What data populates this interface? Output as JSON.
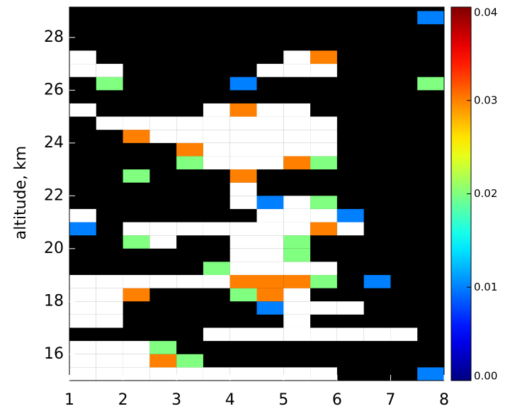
{
  "chart_data": {
    "type": "heatmap",
    "ylabel": "altitude, km",
    "xlim": [
      1,
      8
    ],
    "xticks": [
      1,
      2,
      3,
      4,
      5,
      6,
      7,
      8
    ],
    "ylim": [
      15,
      29.15
    ],
    "yticks": [
      16,
      18,
      20,
      22,
      24,
      26,
      28
    ],
    "zlim": [
      0,
      0.04
    ],
    "zticks": [
      {
        "value": 0,
        "label": "0.00"
      },
      {
        "value": 0.01,
        "label": "0.01"
      },
      {
        "value": 0.02,
        "label": "0.02"
      },
      {
        "value": 0.03,
        "label": "0.03"
      },
      {
        "value": 0.04,
        "label": "0.04"
      }
    ],
    "colormap": "jet",
    "background": "#000000",
    "over_color": "#ffffff",
    "x_edges": [
      1,
      1.5,
      2,
      2.5,
      3,
      3.5,
      4,
      4.5,
      5,
      5.5,
      6,
      6.5,
      7,
      7.5,
      8
    ],
    "y_edges": [
      15,
      15.5,
      16,
      16.5,
      17,
      17.5,
      18,
      18.5,
      19,
      19.5,
      20,
      20.5,
      21,
      21.5,
      22,
      22.5,
      23,
      23.5,
      24,
      24.5,
      25,
      25.5,
      26,
      26.5,
      27,
      27.5,
      28,
      28.5,
      29
    ],
    "z": [
      [
        0.045,
        0.045,
        0.045,
        0.045,
        0.045,
        0.045,
        0.045,
        0.045,
        0.045,
        0.045,
        null,
        null,
        null,
        0.01
      ],
      [
        0.045,
        0.045,
        0.045,
        0.03,
        0.02,
        null,
        null,
        null,
        null,
        null,
        null,
        null,
        null,
        null
      ],
      [
        0.045,
        0.045,
        0.045,
        0.02,
        null,
        null,
        null,
        null,
        null,
        null,
        null,
        null,
        null,
        null
      ],
      [
        null,
        null,
        null,
        null,
        null,
        0.045,
        0.045,
        0.045,
        0.045,
        0.045,
        0.045,
        0.045,
        0.045,
        null
      ],
      [
        0.045,
        0.045,
        null,
        null,
        null,
        null,
        null,
        null,
        0.045,
        null,
        null,
        null,
        null,
        null
      ],
      [
        0.045,
        0.045,
        null,
        null,
        null,
        null,
        null,
        0.01,
        0.045,
        0.045,
        0.045,
        null,
        null,
        null
      ],
      [
        0.045,
        0.045,
        0.03,
        null,
        null,
        null,
        0.02,
        0.03,
        0.045,
        null,
        null,
        null,
        null,
        null
      ],
      [
        0.045,
        0.045,
        0.045,
        0.045,
        0.045,
        0.045,
        0.03,
        0.03,
        0.03,
        0.02,
        null,
        0.01,
        null,
        null
      ],
      [
        null,
        null,
        null,
        null,
        null,
        0.02,
        0.045,
        0.045,
        0.045,
        0.045,
        null,
        null,
        null,
        null
      ],
      [
        null,
        null,
        null,
        null,
        null,
        null,
        0.045,
        0.045,
        0.02,
        null,
        null,
        null,
        null,
        null
      ],
      [
        null,
        null,
        0.02,
        0.045,
        null,
        null,
        0.045,
        0.045,
        0.02,
        null,
        null,
        null,
        null,
        null
      ],
      [
        0.01,
        null,
        0.045,
        0.045,
        0.045,
        0.045,
        0.045,
        0.045,
        0.045,
        0.03,
        0.045,
        null,
        null,
        null
      ],
      [
        0.045,
        null,
        null,
        null,
        null,
        null,
        null,
        0.045,
        0.045,
        0.045,
        0.01,
        null,
        null,
        null
      ],
      [
        null,
        null,
        null,
        null,
        null,
        null,
        0.045,
        0.01,
        0.045,
        0.02,
        null,
        null,
        null,
        null
      ],
      [
        null,
        null,
        null,
        null,
        null,
        null,
        0.045,
        null,
        null,
        null,
        null,
        null,
        null,
        null
      ],
      [
        null,
        null,
        0.02,
        null,
        null,
        null,
        0.03,
        null,
        null,
        null,
        null,
        null,
        null,
        null
      ],
      [
        null,
        null,
        null,
        null,
        0.02,
        0.045,
        0.045,
        0.045,
        0.03,
        0.02,
        null,
        null,
        null,
        null
      ],
      [
        null,
        null,
        null,
        null,
        0.03,
        0.045,
        0.045,
        0.045,
        0.045,
        0.045,
        null,
        null,
        null,
        null
      ],
      [
        null,
        null,
        0.03,
        0.045,
        0.045,
        0.045,
        0.045,
        0.045,
        0.045,
        0.045,
        null,
        null,
        null,
        null
      ],
      [
        null,
        0.045,
        0.045,
        0.045,
        0.045,
        0.045,
        0.045,
        0.045,
        0.045,
        0.045,
        null,
        null,
        null,
        null
      ],
      [
        0.045,
        null,
        null,
        null,
        null,
        0.045,
        0.03,
        0.045,
        0.045,
        null,
        null,
        null,
        null,
        null
      ],
      [
        null,
        null,
        null,
        null,
        null,
        null,
        null,
        null,
        null,
        null,
        null,
        null,
        null,
        null
      ],
      [
        null,
        0.02,
        null,
        null,
        null,
        null,
        0.01,
        null,
        null,
        null,
        null,
        null,
        null,
        0.02
      ],
      [
        0.045,
        0.045,
        null,
        null,
        null,
        null,
        null,
        0.045,
        0.045,
        0.045,
        null,
        null,
        null,
        null
      ],
      [
        0.045,
        null,
        null,
        null,
        null,
        null,
        null,
        null,
        0.045,
        0.03,
        null,
        null,
        null,
        null
      ],
      [
        null,
        null,
        null,
        null,
        null,
        null,
        null,
        null,
        null,
        null,
        null,
        null,
        null,
        null
      ],
      [
        null,
        null,
        null,
        null,
        null,
        null,
        null,
        null,
        null,
        null,
        null,
        null,
        null,
        null
      ],
      [
        null,
        null,
        null,
        null,
        null,
        null,
        null,
        null,
        null,
        null,
        null,
        null,
        null,
        0.01
      ]
    ]
  }
}
